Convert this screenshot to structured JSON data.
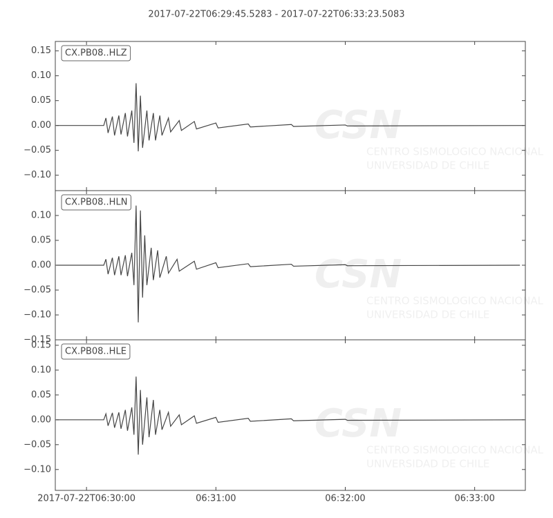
{
  "chart_data": [
    {
      "type": "line",
      "title": "2017-07-22T06:29:45.5283  -  2017-07-22T06:33:23.5083",
      "label": "CX.PB08..HLZ",
      "color": "#444444",
      "xlim": [
        "2017-07-22T06:29:45.5283",
        "2017-07-22T06:33:23.5083"
      ],
      "ylim": [
        -0.131,
        0.169
      ],
      "yticks": [
        {
          "value": -0.1,
          "label": "−0.10"
        },
        {
          "value": -0.05,
          "label": "−0.05"
        },
        {
          "value": 0,
          "label": "0.00"
        },
        {
          "value": 0.05,
          "label": "0.05"
        },
        {
          "value": 0.1,
          "label": "0.10"
        },
        {
          "value": 0.15,
          "label": "0.15"
        }
      ],
      "x": [
        "06:29:46",
        "06:30:08",
        "06:30:09",
        "06:30:10",
        "06:30:12",
        "06:30:13",
        "06:30:15",
        "06:30:16",
        "06:30:18",
        "06:30:19",
        "06:30:21",
        "06:30:22",
        "06:30:23",
        "06:30:24",
        "06:30:25",
        "06:30:26",
        "06:30:28",
        "06:30:29",
        "06:30:31",
        "06:30:32",
        "06:30:34",
        "06:30:35",
        "06:30:38",
        "06:30:39",
        "06:30:43",
        "06:30:44",
        "06:30:50",
        "06:30:51",
        "06:31:00",
        "06:31:01",
        "06:31:15",
        "06:31:16",
        "06:31:35",
        "06:31:36",
        "06:32:00",
        "06:32:01",
        "06:33:23"
      ],
      "values": [
        0,
        0,
        0.015,
        -0.015,
        0.018,
        -0.02,
        0.02,
        -0.018,
        0.025,
        -0.022,
        0.03,
        -0.035,
        0.085,
        -0.052,
        0.06,
        -0.045,
        0.03,
        -0.03,
        0.025,
        -0.03,
        0.02,
        -0.02,
        0.015,
        -0.013,
        0.01,
        -0.01,
        0.008,
        -0.007,
        0.005,
        -0.005,
        0.003,
        -0.003,
        0.002,
        -0.002,
        0.001,
        -0.001,
        0
      ]
    },
    {
      "type": "line",
      "label": "CX.PB08..HLN",
      "color": "#444444",
      "xlim": [
        "2017-07-22T06:29:45.5283",
        "2017-07-22T06:33:23.5083"
      ],
      "ylim": [
        -0.15,
        0.15
      ],
      "yticks": [
        {
          "value": -0.15,
          "label": "−0.15"
        },
        {
          "value": -0.1,
          "label": "−0.10"
        },
        {
          "value": -0.05,
          "label": "−0.05"
        },
        {
          "value": 0,
          "label": "0.00"
        },
        {
          "value": 0.05,
          "label": "0.05"
        },
        {
          "value": 0.1,
          "label": "0.10"
        }
      ],
      "x": [
        "06:29:46",
        "06:30:08",
        "06:30:09",
        "06:30:10",
        "06:30:12",
        "06:30:13",
        "06:30:15",
        "06:30:16",
        "06:30:18",
        "06:30:19",
        "06:30:21",
        "06:30:22",
        "06:30:23",
        "06:30:24",
        "06:30:25",
        "06:30:26",
        "06:30:27",
        "06:30:28",
        "06:30:30",
        "06:30:31",
        "06:30:33",
        "06:30:34",
        "06:30:37",
        "06:30:38",
        "06:30:42",
        "06:30:43",
        "06:30:50",
        "06:30:51",
        "06:31:00",
        "06:31:01",
        "06:31:15",
        "06:31:16",
        "06:31:35",
        "06:31:36",
        "06:32:00",
        "06:32:01",
        "06:33:21"
      ],
      "values": [
        0,
        0,
        0.012,
        -0.018,
        0.015,
        -0.02,
        0.018,
        -0.02,
        0.02,
        -0.022,
        0.025,
        -0.04,
        0.12,
        -0.115,
        0.11,
        -0.065,
        0.06,
        -0.04,
        0.035,
        -0.03,
        0.03,
        -0.025,
        0.018,
        -0.016,
        0.012,
        -0.012,
        0.008,
        -0.008,
        0.005,
        -0.005,
        0.003,
        -0.003,
        0.002,
        -0.002,
        0.001,
        -0.001,
        0
      ]
    },
    {
      "type": "line",
      "label": "CX.PB08..HLE",
      "color": "#444444",
      "xlim": [
        "2017-07-22T06:29:45.5283",
        "2017-07-22T06:33:23.5083"
      ],
      "ylim": [
        -0.142,
        0.161
      ],
      "yticks": [
        {
          "value": -0.1,
          "label": "−0.10"
        },
        {
          "value": -0.05,
          "label": "−0.05"
        },
        {
          "value": 0,
          "label": "0.00"
        },
        {
          "value": 0.05,
          "label": "0.05"
        },
        {
          "value": 0.1,
          "label": "0.10"
        },
        {
          "value": 0.15,
          "label": "0.15"
        }
      ],
      "xticks": [
        "2017-07-22T06:30:00",
        {
          "value": "2017-07-22T06:31:00",
          "label": "06:31:00"
        },
        {
          "value": "2017-07-22T06:32:00",
          "label": "06:32:00"
        },
        {
          "value": "2017-07-22T06:33:00",
          "label": "06:33:00"
        }
      ],
      "x": [
        "06:29:46",
        "06:30:08",
        "06:30:09",
        "06:30:10",
        "06:30:12",
        "06:30:13",
        "06:30:15",
        "06:30:16",
        "06:30:18",
        "06:30:19",
        "06:30:21",
        "06:30:22",
        "06:30:23",
        "06:30:24",
        "06:30:25",
        "06:30:26",
        "06:30:28",
        "06:30:29",
        "06:30:31",
        "06:30:32",
        "06:30:34",
        "06:30:35",
        "06:30:38",
        "06:30:39",
        "06:30:43",
        "06:30:44",
        "06:30:50",
        "06:30:51",
        "06:31:00",
        "06:31:01",
        "06:31:15",
        "06:31:16",
        "06:31:35",
        "06:31:36",
        "06:32:00",
        "06:32:01",
        "06:33:23"
      ],
      "values": [
        0,
        0,
        0.012,
        -0.012,
        0.014,
        -0.016,
        0.015,
        -0.018,
        0.02,
        -0.022,
        0.025,
        -0.03,
        0.087,
        -0.07,
        0.06,
        -0.05,
        0.045,
        -0.035,
        0.04,
        -0.03,
        0.02,
        -0.02,
        0.015,
        -0.013,
        0.01,
        -0.01,
        0.008,
        -0.007,
        0.005,
        -0.005,
        0.003,
        -0.003,
        0.002,
        -0.002,
        0.001,
        -0.001,
        0
      ]
    }
  ],
  "watermark": [
    "CSN",
    "CENTRO SISMOLOGICO NACIONAL",
    "UNIVERSIDAD DE CHILE"
  ]
}
